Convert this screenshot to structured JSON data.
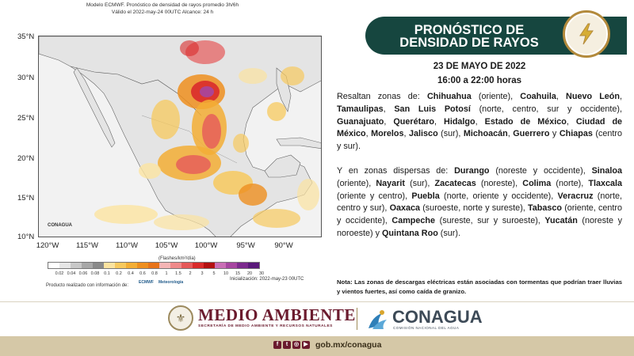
{
  "map": {
    "title_line1": "Modelo ECMWF. Pronóstico de densidad de rayos promedio 3h/6h",
    "title_line2": "Válido el 2022-may-24 00UTC    Alcance: 24 h",
    "lat_labels": [
      "35°N",
      "30°N",
      "25°N",
      "20°N",
      "15°N",
      "10°N"
    ],
    "lon_labels": [
      "120°W",
      "115°W",
      "110°W",
      "105°W",
      "100°W",
      "95°W",
      "90°W"
    ],
    "watermark": "CONAGUA",
    "legend_caption": "(Flashes/km²/día)",
    "legend_values": [
      "0.02",
      "0.04",
      "0.06",
      "0.08",
      "0.1",
      "0.2",
      "0.4",
      "0.6",
      "0.8",
      "1",
      "1.5",
      "2",
      "3",
      "5",
      "10",
      "15",
      "20",
      "30"
    ],
    "legend_colors": [
      "#ffffff",
      "#e6e6e6",
      "#c8c8c8",
      "#a8a8a8",
      "#8a8a8a",
      "#fbe3a0",
      "#f7c95e",
      "#f3ae35",
      "#ee8f1f",
      "#e8741a",
      "#f5b5b5",
      "#ef8a8a",
      "#e65a5a",
      "#d92b2b",
      "#b31111",
      "#c96fb5",
      "#a646a0",
      "#7c2a8e",
      "#5a1a7a"
    ],
    "producto": "Producto realizado con información de:",
    "producto_logos": [
      "ECMWF",
      "Meteorología"
    ],
    "inicializacion": "Inicialización: 2022-may-23 00UTC"
  },
  "header": {
    "title_line1": "PRONÓSTICO DE",
    "title_line2": "DENSIDAD DE RAYOS",
    "icon": "lightning-icon",
    "color": "#16463f",
    "accent": "#b38a3c"
  },
  "date": "23 DE MAYO DE 2022",
  "time": "16:00 a 22:00 horas",
  "para1": [
    {
      "t": "Resaltan zonas de: ",
      "b": false
    },
    {
      "t": "Chihuahua",
      "b": true
    },
    {
      "t": " (oriente), ",
      "b": false
    },
    {
      "t": "Coahuila",
      "b": true
    },
    {
      "t": ", ",
      "b": false
    },
    {
      "t": "Nuevo León",
      "b": true
    },
    {
      "t": ", ",
      "b": false
    },
    {
      "t": "Tamaulipas",
      "b": true
    },
    {
      "t": ", ",
      "b": false
    },
    {
      "t": "San Luis Potosí",
      "b": true
    },
    {
      "t": " (norte, centro, sur y occidente), ",
      "b": false
    },
    {
      "t": "Guanajuato",
      "b": true
    },
    {
      "t": ", ",
      "b": false
    },
    {
      "t": "Querétaro",
      "b": true
    },
    {
      "t": ", ",
      "b": false
    },
    {
      "t": "Hidalgo",
      "b": true
    },
    {
      "t": ", ",
      "b": false
    },
    {
      "t": "Estado de México",
      "b": true
    },
    {
      "t": ", ",
      "b": false
    },
    {
      "t": "Ciudad de México",
      "b": true
    },
    {
      "t": ", ",
      "b": false
    },
    {
      "t": "Morelos",
      "b": true
    },
    {
      "t": ", ",
      "b": false
    },
    {
      "t": "Jalisco",
      "b": true
    },
    {
      "t": " (sur), ",
      "b": false
    },
    {
      "t": "Michoacán",
      "b": true
    },
    {
      "t": ", ",
      "b": false
    },
    {
      "t": "Guerrero",
      "b": true
    },
    {
      "t": " y ",
      "b": false
    },
    {
      "t": "Chiapas",
      "b": true
    },
    {
      "t": " (centro y sur).",
      "b": false
    }
  ],
  "para2": [
    {
      "t": "Y en zonas dispersas de: ",
      "b": false
    },
    {
      "t": "Durango",
      "b": true
    },
    {
      "t": " (noreste y occidente), ",
      "b": false
    },
    {
      "t": "Sinaloa",
      "b": true
    },
    {
      "t": " (oriente), ",
      "b": false
    },
    {
      "t": "Nayarit",
      "b": true
    },
    {
      "t": " (sur), ",
      "b": false
    },
    {
      "t": "Zacatecas",
      "b": true
    },
    {
      "t": " (noreste), ",
      "b": false
    },
    {
      "t": "Colima",
      "b": true
    },
    {
      "t": " (norte), ",
      "b": false
    },
    {
      "t": "Tlaxcala",
      "b": true
    },
    {
      "t": " (oriente y centro), ",
      "b": false
    },
    {
      "t": "Puebla",
      "b": true
    },
    {
      "t": " (norte, oriente y occidente), ",
      "b": false
    },
    {
      "t": "Veracruz",
      "b": true
    },
    {
      "t": " (norte, centro y sur), ",
      "b": false
    },
    {
      "t": "Oaxaca",
      "b": true
    },
    {
      "t": " (suroeste, norte y sureste), ",
      "b": false
    },
    {
      "t": "Tabasco",
      "b": true
    },
    {
      "t": " (oriente, centro y occidente), ",
      "b": false
    },
    {
      "t": "Campeche",
      "b": true
    },
    {
      "t": " (sureste, sur y suroeste), ",
      "b": false
    },
    {
      "t": "Yucatán",
      "b": true
    },
    {
      "t": " (noreste y noroeste) y ",
      "b": false
    },
    {
      "t": "Quintana Roo",
      "b": true
    },
    {
      "t": " (sur).",
      "b": false
    }
  ],
  "note": "Nota: Las zonas de descargas eléctricas están asociadas con tormentas que podrían traer lluvias y vientos fuertes, así como caída de granizo.",
  "footer": {
    "medio_title": "MEDIO AMBIENTE",
    "medio_sub": "SECRETARÍA DE MEDIO AMBIENTE Y RECURSOS NATURALES",
    "conagua_title": "CONAGUA",
    "conagua_sub": "COMISIÓN NACIONAL DEL AGUA",
    "social_icons": [
      "facebook-icon",
      "twitter-icon",
      "instagram-icon",
      "youtube-icon"
    ],
    "link": "gob.mx/conagua",
    "brand_color": "#6b1b2e"
  }
}
